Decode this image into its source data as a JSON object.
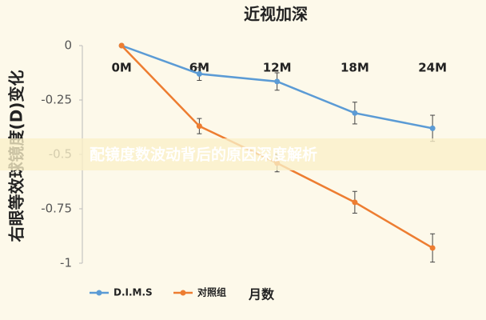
{
  "chart_data": {
    "type": "line",
    "title": "近视加深",
    "y_label": "右眼等效球镜度(D)变化",
    "x_label": "月数",
    "categories": [
      "0M",
      "6M",
      "12M",
      "18M",
      "24M"
    ],
    "series": [
      {
        "name": "D.I.M.S",
        "color": "#5b9bd5",
        "values": [
          0,
          -0.13,
          -0.165,
          -0.31,
          -0.38
        ],
        "errors": [
          0,
          0.03,
          0.04,
          0.05,
          0.06
        ]
      },
      {
        "name": "对照组",
        "color": "#ed7d31",
        "values": [
          0,
          -0.37,
          -0.54,
          -0.72,
          -0.93
        ],
        "errors": [
          0,
          0.035,
          0.04,
          0.05,
          0.065
        ]
      }
    ],
    "ylim": [
      -1,
      0
    ],
    "yticks": [
      0,
      -0.25,
      -0.5,
      -0.75,
      -1
    ],
    "legend": "bottom"
  },
  "banner": {
    "text": "配镜度数波动背后的原因深度解析"
  }
}
